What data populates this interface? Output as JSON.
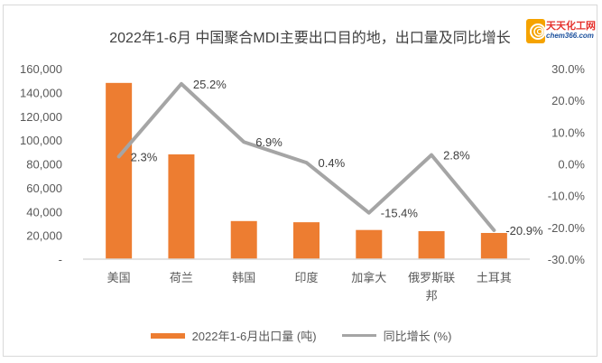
{
  "chart_data": {
    "type": "bar",
    "title": "2022年1-6月 中国聚合MDI主要出口目的地，出口量及同比增长",
    "categories": [
      "美国",
      "荷兰",
      "韩国",
      "印度",
      "加拿大",
      "俄罗斯联邦",
      "土耳其"
    ],
    "category_lines": [
      [
        "美国"
      ],
      [
        "荷兰"
      ],
      [
        "韩国"
      ],
      [
        "印度"
      ],
      [
        "加拿大"
      ],
      [
        "俄罗斯联",
        "邦"
      ],
      [
        "土耳其"
      ]
    ],
    "series": [
      {
        "name": "2022年1-6月出口量 (吨)",
        "type": "bar",
        "axis": "left",
        "color": "#ed7d31",
        "values": [
          148000,
          88000,
          32000,
          31000,
          24500,
          23500,
          22000
        ]
      },
      {
        "name": "同比增长 (%)",
        "type": "line",
        "axis": "right",
        "color": "#a5a5a5",
        "values": [
          2.3,
          25.2,
          6.9,
          0.4,
          -15.4,
          2.8,
          -20.9
        ],
        "labels": [
          "2.3%",
          "25.2%",
          "6.9%",
          "0.4%",
          "-15.4%",
          "2.8%",
          "-20.9%"
        ]
      }
    ],
    "y_left": {
      "ylim": [
        0,
        160000
      ],
      "ticks": [
        0,
        20000,
        40000,
        60000,
        80000,
        100000,
        120000,
        140000,
        160000
      ],
      "tick_labels": [
        "-",
        "20,000",
        "40,000",
        "60,000",
        "80,000",
        "100,000",
        "120,000",
        "140,000",
        "160,000"
      ]
    },
    "y_right": {
      "ylim": [
        -30,
        30
      ],
      "ticks": [
        -30,
        -20,
        -10,
        0,
        10,
        20,
        30
      ],
      "tick_labels": [
        "-30.0%",
        "-20.0%",
        "-10.0%",
        "0.0%",
        "10.0%",
        "20.0%",
        "30.0%"
      ]
    },
    "xlabel": "",
    "ylabel": "",
    "grid": false,
    "legend_position": "bottom"
  },
  "logo": {
    "name_cn": "天天化工网",
    "domain": "chem366.com",
    "color_cn": "#e5322d",
    "color_en": "#1a4f9c",
    "icon_color": "#f5a300"
  }
}
